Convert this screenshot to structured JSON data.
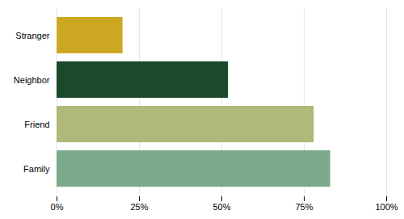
{
  "chart_data": {
    "type": "bar",
    "orientation": "horizontal",
    "categories": [
      "Stranger",
      "Neighbor",
      "Friend",
      "Family"
    ],
    "values": [
      20,
      52,
      78,
      83
    ],
    "colors": [
      "#cca822",
      "#1a4a2a",
      "#b0b87a",
      "#7aaa8a"
    ],
    "xlim": [
      0,
      100
    ],
    "xticks": [
      {
        "value": 0,
        "label": "0%"
      },
      {
        "value": 25,
        "label": "25%"
      },
      {
        "value": 50,
        "label": "50%"
      },
      {
        "value": 75,
        "label": "75%"
      },
      {
        "value": 100,
        "label": "100%"
      }
    ],
    "grid": true
  }
}
